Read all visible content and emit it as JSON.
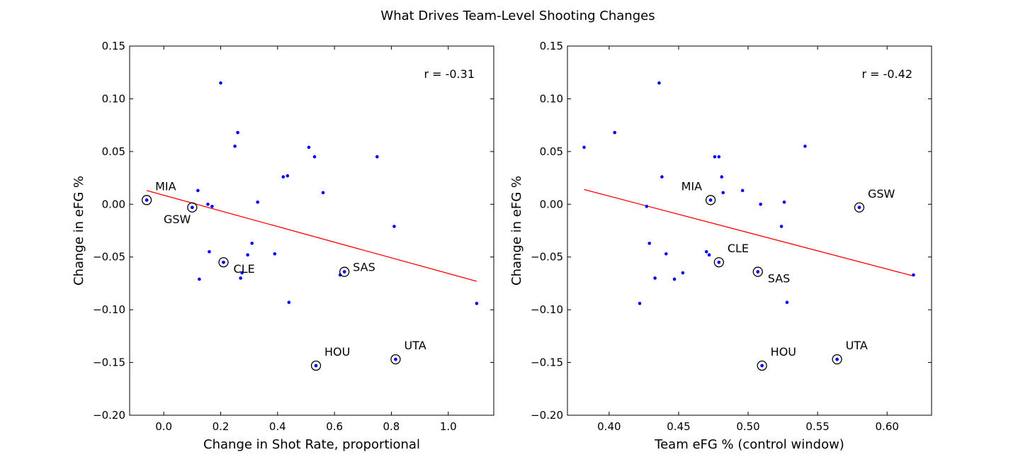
{
  "figure": {
    "suptitle": "What Drives Team-Level Shooting Changes"
  },
  "colors": {
    "points": "#0000ff",
    "fit_line": "#ff0000",
    "highlight_ring": "#000000"
  },
  "chart_data": [
    {
      "type": "scatter",
      "title": "",
      "xlabel": "Change in Shot Rate, proportional",
      "ylabel": "Change in eFG %",
      "xlim": [
        -0.12,
        1.16
      ],
      "ylim": [
        -0.2,
        0.15
      ],
      "xticks": [
        0.0,
        0.2,
        0.4,
        0.6,
        0.8,
        1.0
      ],
      "xtick_labels": [
        "0.0",
        "0.2",
        "0.4",
        "0.6",
        "0.8",
        "1.0"
      ],
      "yticks": [
        0.15,
        0.1,
        0.05,
        0.0,
        -0.05,
        -0.1,
        -0.15,
        -0.2
      ],
      "ytick_labels": [
        "0.15",
        "0.10",
        "0.05",
        "0.00",
        "−0.05",
        "−0.10",
        "−0.15",
        "−0.20"
      ],
      "annotation": "r = -0.31",
      "points": [
        {
          "x": -0.06,
          "y": 0.004
        },
        {
          "x": 0.1,
          "y": -0.003
        },
        {
          "x": 0.12,
          "y": 0.013
        },
        {
          "x": 0.155,
          "y": 0.0
        },
        {
          "x": 0.17,
          "y": -0.002
        },
        {
          "x": 0.16,
          "y": -0.045
        },
        {
          "x": 0.125,
          "y": -0.071
        },
        {
          "x": 0.21,
          "y": -0.055
        },
        {
          "x": 0.2,
          "y": 0.115
        },
        {
          "x": 0.25,
          "y": 0.055
        },
        {
          "x": 0.26,
          "y": 0.068
        },
        {
          "x": 0.27,
          "y": -0.07
        },
        {
          "x": 0.275,
          "y": -0.065
        },
        {
          "x": 0.295,
          "y": -0.048
        },
        {
          "x": 0.31,
          "y": -0.037
        },
        {
          "x": 0.33,
          "y": 0.002
        },
        {
          "x": 0.39,
          "y": -0.047
        },
        {
          "x": 0.42,
          "y": 0.026
        },
        {
          "x": 0.435,
          "y": 0.027
        },
        {
          "x": 0.44,
          "y": -0.093
        },
        {
          "x": 0.51,
          "y": 0.054
        },
        {
          "x": 0.53,
          "y": 0.045
        },
        {
          "x": 0.535,
          "y": -0.153
        },
        {
          "x": 0.56,
          "y": 0.011
        },
        {
          "x": 0.62,
          "y": -0.067
        },
        {
          "x": 0.635,
          "y": -0.064
        },
        {
          "x": 0.75,
          "y": 0.045
        },
        {
          "x": 0.81,
          "y": -0.021
        },
        {
          "x": 0.815,
          "y": -0.147
        },
        {
          "x": 1.1,
          "y": -0.094
        }
      ],
      "highlighted": [
        {
          "label": "MIA",
          "x": -0.06,
          "y": 0.004,
          "label_pos": "above-right"
        },
        {
          "label": "GSW",
          "x": 0.1,
          "y": -0.003,
          "label_pos": "below-left"
        },
        {
          "label": "CLE",
          "x": 0.21,
          "y": -0.055,
          "label_pos": "below-right"
        },
        {
          "label": "SAS",
          "x": 0.635,
          "y": -0.064,
          "label_pos": "right"
        },
        {
          "label": "HOU",
          "x": 0.535,
          "y": -0.153,
          "label_pos": "above-right"
        },
        {
          "label": "UTA",
          "x": 0.815,
          "y": -0.147,
          "label_pos": "above-right"
        }
      ],
      "fit_line": {
        "x": [
          -0.06,
          1.1
        ],
        "y": [
          0.013,
          -0.073
        ]
      }
    },
    {
      "type": "scatter",
      "title": "",
      "xlabel": "Team eFG % (control window)",
      "ylabel": "Change in eFG %",
      "xlim": [
        0.37,
        0.632
      ],
      "ylim": [
        -0.2,
        0.15
      ],
      "xticks": [
        0.4,
        0.45,
        0.5,
        0.55,
        0.6
      ],
      "xtick_labels": [
        "0.40",
        "0.45",
        "0.50",
        "0.55",
        "0.60"
      ],
      "yticks": [
        0.15,
        0.1,
        0.05,
        0.0,
        -0.05,
        -0.1,
        -0.15,
        -0.2
      ],
      "ytick_labels": [
        "0.15",
        "0.10",
        "0.05",
        "0.00",
        "−0.05",
        "−0.10",
        "−0.15",
        "−0.20"
      ],
      "annotation": "r = -0.42",
      "points": [
        {
          "x": 0.382,
          "y": 0.054
        },
        {
          "x": 0.404,
          "y": 0.068
        },
        {
          "x": 0.422,
          "y": -0.094
        },
        {
          "x": 0.427,
          "y": -0.002
        },
        {
          "x": 0.429,
          "y": -0.037
        },
        {
          "x": 0.433,
          "y": -0.07
        },
        {
          "x": 0.436,
          "y": 0.115
        },
        {
          "x": 0.438,
          "y": 0.026
        },
        {
          "x": 0.441,
          "y": -0.047
        },
        {
          "x": 0.447,
          "y": -0.071
        },
        {
          "x": 0.453,
          "y": -0.065
        },
        {
          "x": 0.47,
          "y": -0.045
        },
        {
          "x": 0.472,
          "y": -0.048
        },
        {
          "x": 0.473,
          "y": 0.004
        },
        {
          "x": 0.476,
          "y": 0.045
        },
        {
          "x": 0.479,
          "y": 0.045
        },
        {
          "x": 0.479,
          "y": -0.055
        },
        {
          "x": 0.481,
          "y": 0.026
        },
        {
          "x": 0.482,
          "y": 0.011
        },
        {
          "x": 0.496,
          "y": 0.013
        },
        {
          "x": 0.507,
          "y": -0.064
        },
        {
          "x": 0.509,
          "y": 0.0
        },
        {
          "x": 0.51,
          "y": -0.153
        },
        {
          "x": 0.524,
          "y": -0.021
        },
        {
          "x": 0.526,
          "y": 0.002
        },
        {
          "x": 0.528,
          "y": -0.093
        },
        {
          "x": 0.541,
          "y": 0.055
        },
        {
          "x": 0.564,
          "y": -0.147
        },
        {
          "x": 0.58,
          "y": -0.003
        },
        {
          "x": 0.619,
          "y": -0.067
        }
      ],
      "highlighted": [
        {
          "label": "MIA",
          "x": 0.473,
          "y": 0.004,
          "label_pos": "above-left"
        },
        {
          "label": "GSW",
          "x": 0.58,
          "y": -0.003,
          "label_pos": "above-right"
        },
        {
          "label": "CLE",
          "x": 0.479,
          "y": -0.055,
          "label_pos": "above-right"
        },
        {
          "label": "SAS",
          "x": 0.507,
          "y": -0.064,
          "label_pos": "below-right"
        },
        {
          "label": "HOU",
          "x": 0.51,
          "y": -0.153,
          "label_pos": "above-right"
        },
        {
          "label": "UTA",
          "x": 0.564,
          "y": -0.147,
          "label_pos": "above-right"
        }
      ],
      "fit_line": {
        "x": [
          0.382,
          0.619
        ],
        "y": [
          0.014,
          -0.068
        ]
      }
    }
  ]
}
